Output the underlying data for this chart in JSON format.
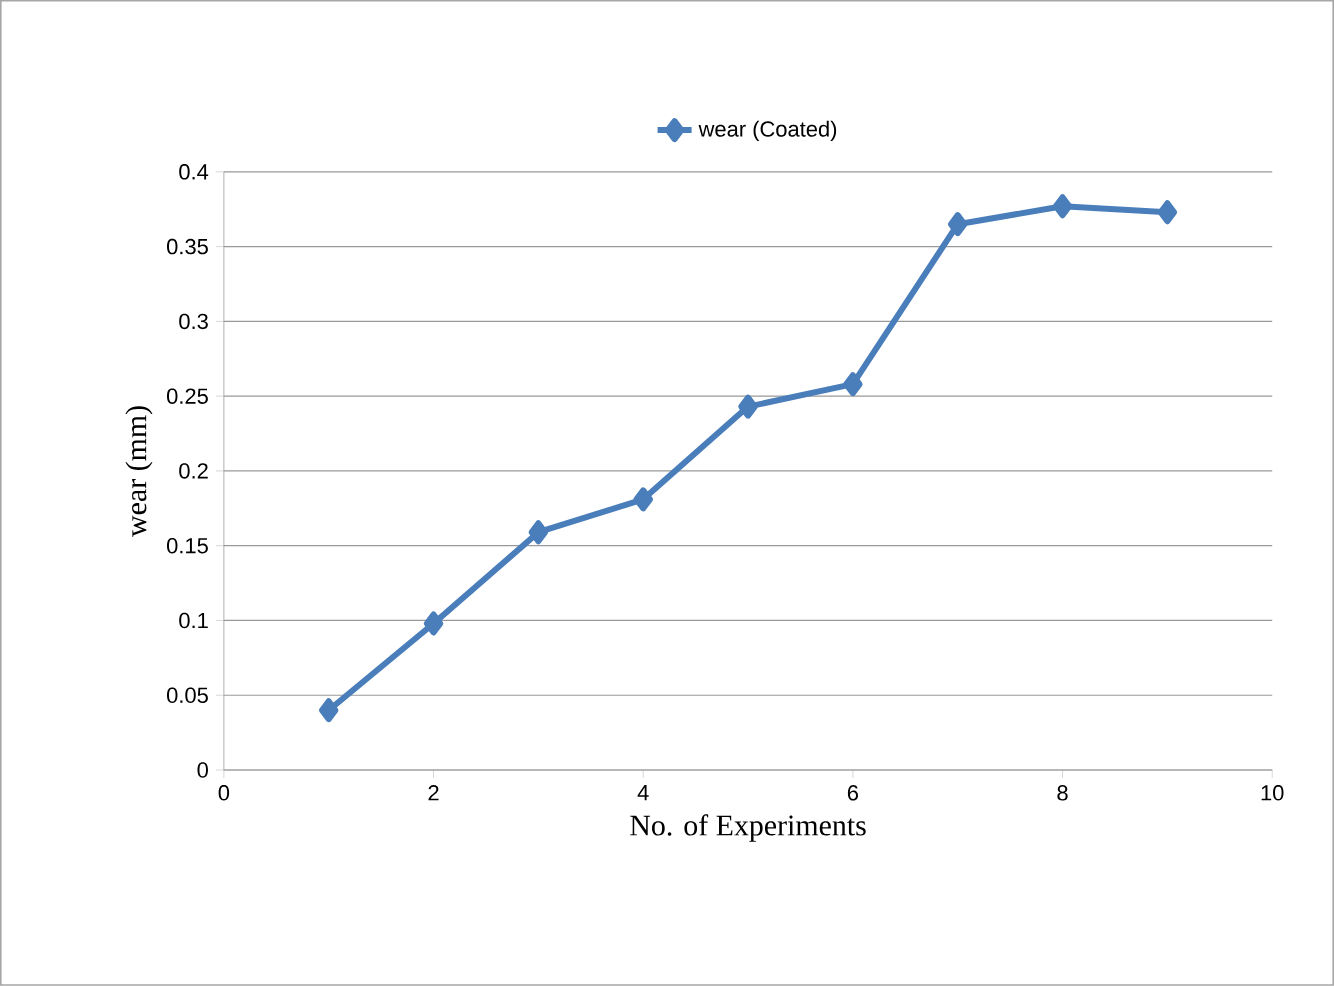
{
  "chart_data": {
    "type": "line",
    "xlabel": "No. of Experiments",
    "ylabel": "wear  (mm)",
    "x": [
      1,
      2,
      3,
      4,
      5,
      6,
      7,
      8,
      9
    ],
    "series": [
      {
        "name": "wear (Coated)",
        "color": "#4a7ebb",
        "values": [
          0.04,
          0.098,
          0.159,
          0.181,
          0.243,
          0.258,
          0.365,
          0.377,
          0.373
        ]
      }
    ],
    "xlim": [
      0,
      10
    ],
    "xticks": [
      0,
      2,
      4,
      6,
      8,
      10
    ],
    "ylim": [
      0,
      0.4
    ],
    "yticks": [
      0,
      0.05,
      0.1,
      0.15,
      0.2,
      0.25,
      0.3,
      0.35,
      0.4
    ],
    "grid": "y",
    "legend": "top",
    "marker": "diamond",
    "line_style": "solid"
  }
}
